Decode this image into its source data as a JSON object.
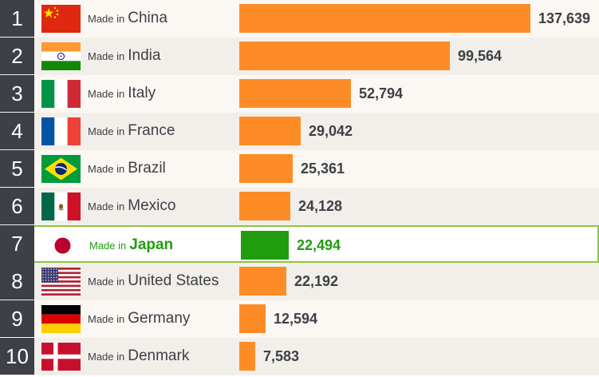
{
  "chart_data": {
    "type": "bar",
    "orientation": "horizontal",
    "prefix": "Made in",
    "categories": [
      "China",
      "India",
      "Italy",
      "France",
      "Brazil",
      "Mexico",
      "Japan",
      "United States",
      "Germany",
      "Denmark"
    ],
    "ranks": [
      "1",
      "2",
      "3",
      "4",
      "5",
      "6",
      "7",
      "8",
      "9",
      "10"
    ],
    "values": [
      137639,
      99564,
      52794,
      29042,
      25361,
      24128,
      22494,
      22192,
      12594,
      7583
    ],
    "value_labels": [
      "137,639",
      "99,564",
      "52,794",
      "29,042",
      "25,361",
      "24,128",
      "22,494",
      "22,192",
      "12,594",
      "7,583"
    ],
    "flags": [
      "china-flag",
      "india-flag",
      "italy-flag",
      "france-flag",
      "brazil-flag",
      "mexico-flag",
      "japan-flag",
      "united-states-flag",
      "germany-flag",
      "denmark-flag"
    ],
    "highlight": "Japan",
    "xlim": [
      0,
      137639
    ],
    "grid": false,
    "colors": {
      "bar": "#fd8c26",
      "highlight_bar": "#229c0f",
      "highlight_text": "#229c0f",
      "highlight_border": "#8cc63f",
      "rank_bg": "#3d4047",
      "text": "#3d4047"
    }
  }
}
